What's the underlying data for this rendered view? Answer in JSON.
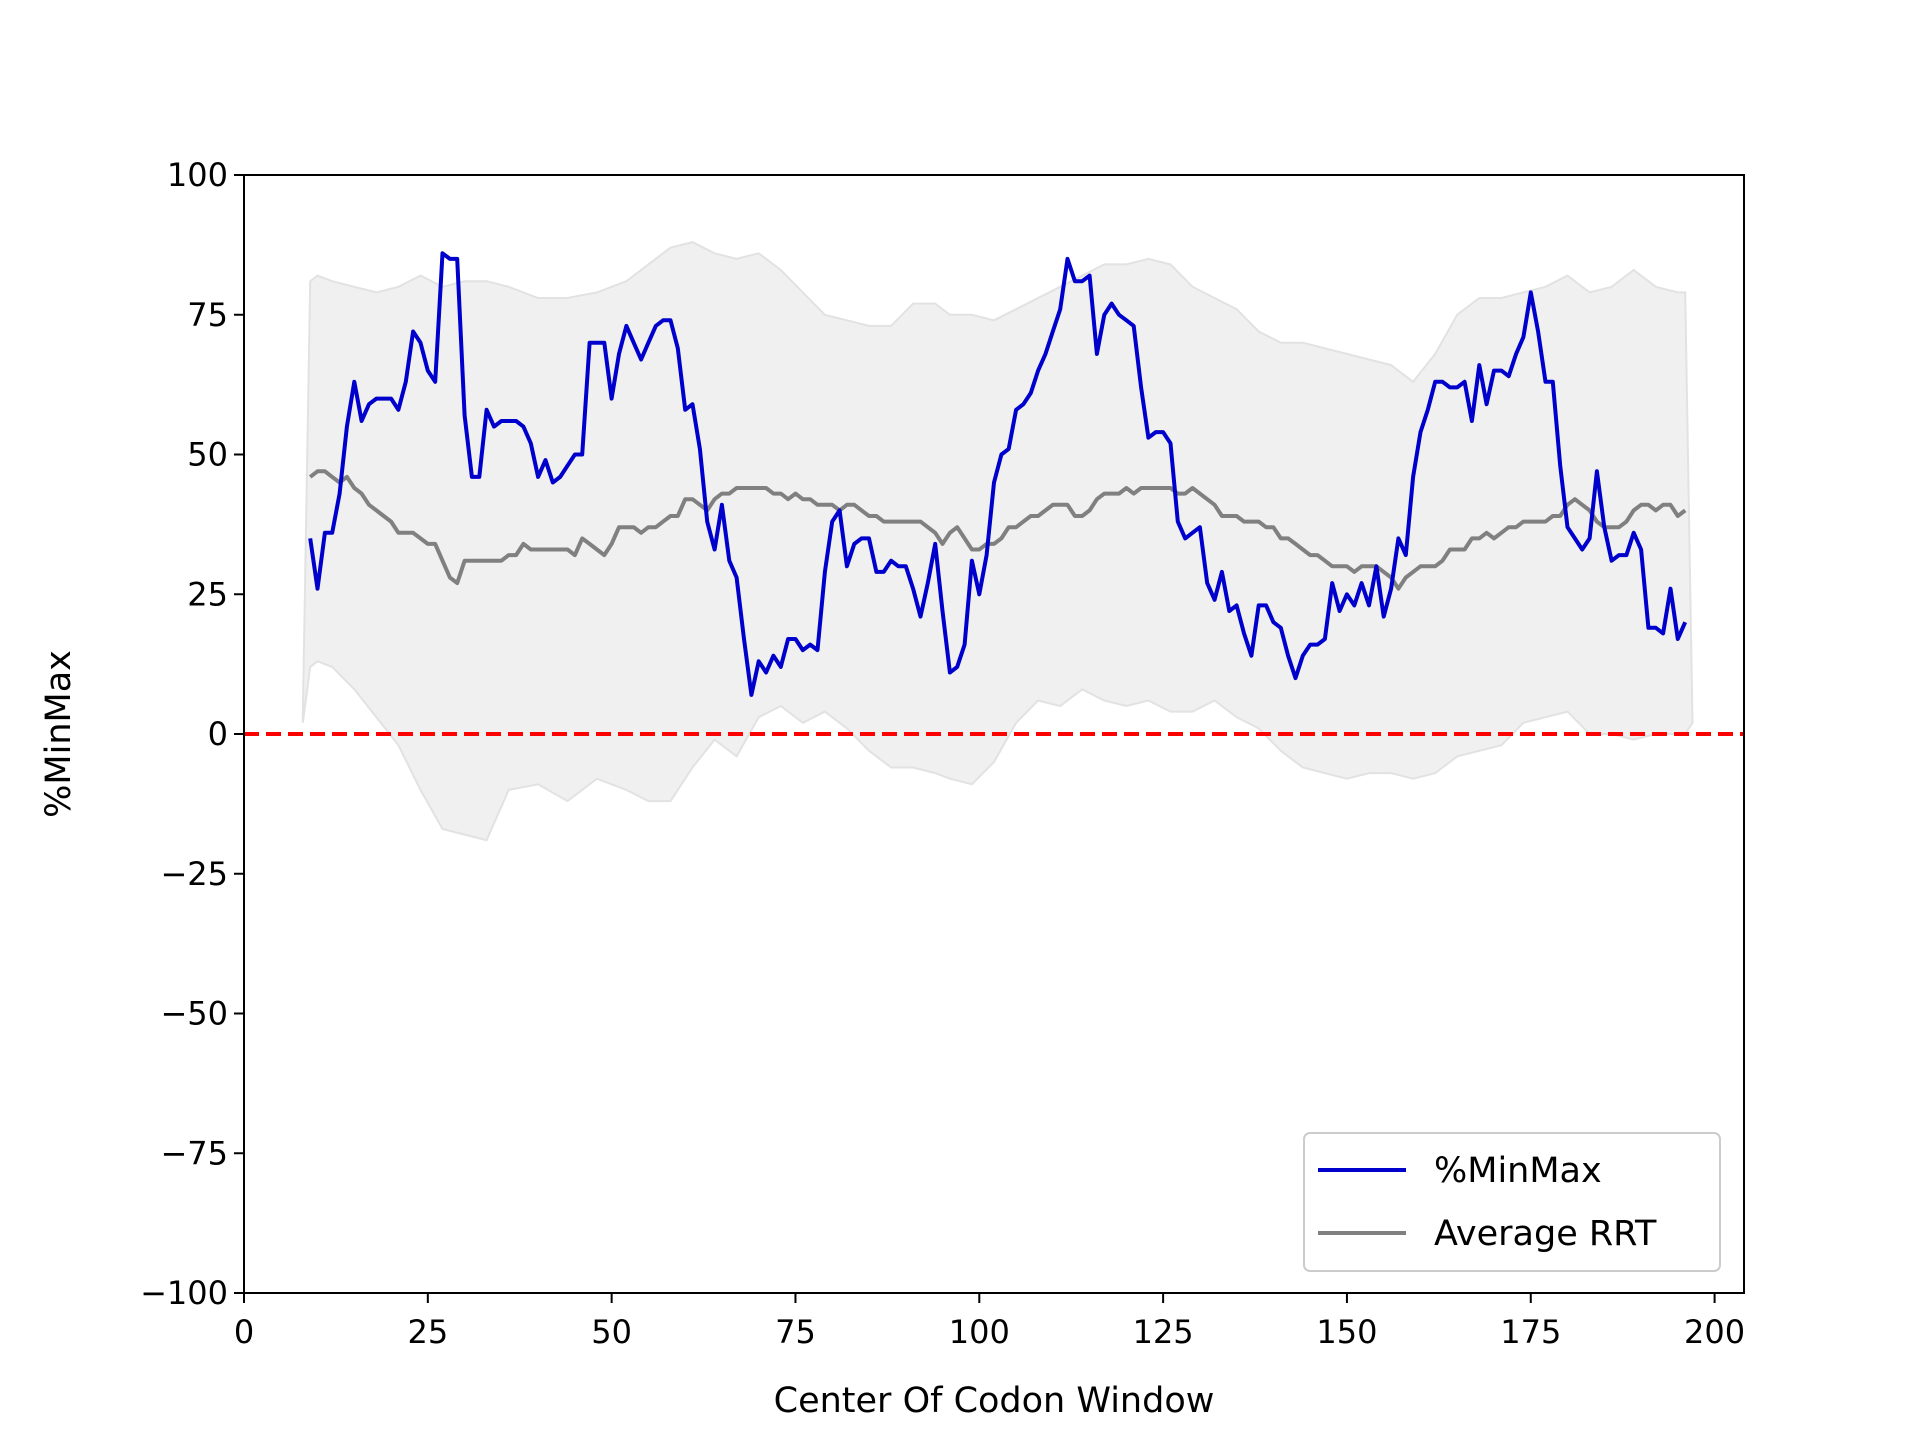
{
  "chart_data": {
    "type": "line",
    "title": "",
    "xlabel": "Center Of Codon Window",
    "ylabel": "%MinMax",
    "xlim": [
      0,
      204
    ],
    "ylim": [
      -100,
      100
    ],
    "x_ticks": [
      0,
      25,
      50,
      75,
      100,
      125,
      150,
      175,
      200
    ],
    "y_ticks": [
      100,
      75,
      50,
      25,
      0,
      -25,
      -50,
      -75,
      -100
    ],
    "x_tick_labels": [
      "0",
      "25",
      "50",
      "75",
      "100",
      "125",
      "150",
      "175",
      "200"
    ],
    "y_tick_labels": [
      "100",
      "75",
      "50",
      "25",
      "0",
      "−25",
      "−50",
      "−75",
      "−100"
    ],
    "grid": false,
    "legend_position": "lower right",
    "reference_line": {
      "y": 0,
      "style": "dashed",
      "color": "#ff0000"
    },
    "band": {
      "color": "#f0f0f0",
      "x": [
        8,
        9,
        10,
        12,
        15,
        18,
        21,
        24,
        27,
        30,
        33,
        36,
        40,
        44,
        48,
        52,
        55,
        58,
        61,
        64,
        67,
        70,
        73,
        76,
        79,
        82,
        85,
        88,
        91,
        94,
        96,
        99,
        102,
        105,
        108,
        111,
        114,
        117,
        120,
        123,
        126,
        129,
        132,
        135,
        138,
        141,
        144,
        147,
        150,
        153,
        156,
        159,
        162,
        165,
        168,
        171,
        174,
        177,
        180,
        183,
        186,
        189,
        192,
        195,
        196,
        197
      ],
      "upper": [
        3,
        81,
        82,
        81,
        80,
        79,
        80,
        82,
        80,
        81,
        81,
        80,
        78,
        78,
        79,
        81,
        84,
        87,
        88,
        86,
        85,
        86,
        83,
        79,
        75,
        74,
        73,
        73,
        77,
        77,
        75,
        75,
        74,
        76,
        78,
        80,
        82,
        84,
        84,
        85,
        84,
        80,
        78,
        76,
        72,
        70,
        70,
        69,
        68,
        67,
        66,
        63,
        68,
        75,
        78,
        78,
        79,
        80,
        82,
        79,
        80,
        83,
        80,
        79,
        79,
        2
      ],
      "lower": [
        2,
        12,
        13,
        12,
        8,
        3,
        -2,
        -10,
        -17,
        -18,
        -19,
        -10,
        -9,
        -12,
        -8,
        -10,
        -12,
        -12,
        -6,
        -1,
        -4,
        3,
        5,
        2,
        4,
        1,
        -3,
        -6,
        -6,
        -7,
        -8,
        -9,
        -5,
        2,
        6,
        5,
        8,
        6,
        5,
        6,
        4,
        4,
        6,
        3,
        1,
        -3,
        -6,
        -7,
        -8,
        -7,
        -7,
        -8,
        -7,
        -4,
        -3,
        -2,
        2,
        3,
        4,
        0,
        0,
        -1,
        0,
        0,
        0,
        2
      ]
    },
    "x": [
      9,
      10,
      11,
      12,
      13,
      14,
      15,
      16,
      17,
      18,
      19,
      20,
      21,
      22,
      23,
      24,
      25,
      26,
      27,
      28,
      29,
      30,
      31,
      32,
      33,
      34,
      35,
      36,
      37,
      38,
      39,
      40,
      41,
      42,
      43,
      44,
      45,
      46,
      47,
      48,
      49,
      50,
      51,
      52,
      53,
      54,
      55,
      56,
      57,
      58,
      59,
      60,
      61,
      62,
      63,
      64,
      65,
      66,
      67,
      68,
      69,
      70,
      71,
      72,
      73,
      74,
      75,
      76,
      77,
      78,
      79,
      80,
      81,
      82,
      83,
      84,
      85,
      86,
      87,
      88,
      89,
      90,
      91,
      92,
      93,
      94,
      95,
      96,
      97,
      98,
      99,
      100,
      101,
      102,
      103,
      104,
      105,
      106,
      107,
      108,
      109,
      110,
      111,
      112,
      113,
      114,
      115,
      116,
      117,
      118,
      119,
      120,
      121,
      122,
      123,
      124,
      125,
      126,
      127,
      128,
      129,
      130,
      131,
      132,
      133,
      134,
      135,
      136,
      137,
      138,
      139,
      140,
      141,
      142,
      143,
      144,
      145,
      146,
      147,
      148,
      149,
      150,
      151,
      152,
      153,
      154,
      155,
      156,
      157,
      158,
      159,
      160,
      161,
      162,
      163,
      164,
      165,
      166,
      167,
      168,
      169,
      170,
      171,
      172,
      173,
      174,
      175,
      176,
      177,
      178,
      179,
      180,
      181,
      182,
      183,
      184,
      185,
      186,
      187,
      188,
      189,
      190,
      191,
      192,
      193,
      194,
      195,
      196
    ],
    "series": [
      {
        "name": "%MinMax",
        "color": "#0000cc",
        "values": [
          35,
          26,
          36,
          36,
          43,
          55,
          63,
          56,
          59,
          60,
          60,
          60,
          58,
          63,
          72,
          70,
          65,
          63,
          86,
          85,
          85,
          57,
          46,
          46,
          58,
          55,
          56,
          56,
          56,
          55,
          52,
          46,
          49,
          45,
          46,
          48,
          50,
          50,
          70,
          70,
          70,
          60,
          68,
          73,
          70,
          67,
          70,
          73,
          74,
          74,
          69,
          58,
          59,
          51,
          38,
          33,
          41,
          31,
          28,
          17,
          7,
          13,
          11,
          14,
          12,
          17,
          17,
          15,
          16,
          15,
          29,
          38,
          40,
          30,
          34,
          35,
          35,
          29,
          29,
          31,
          30,
          30,
          26,
          21,
          27,
          34,
          22,
          11,
          12,
          16,
          31,
          25,
          32,
          45,
          50,
          51,
          58,
          59,
          61,
          65,
          68,
          72,
          76,
          85,
          81,
          81,
          82,
          68,
          75,
          77,
          75,
          74,
          73,
          62,
          53,
          54,
          54,
          52,
          38,
          35,
          36,
          37,
          27,
          24,
          29,
          22,
          23,
          18,
          14,
          23,
          23,
          20,
          19,
          14,
          10,
          14,
          16,
          16,
          17,
          27,
          22,
          25,
          23,
          27,
          23,
          30,
          21,
          26,
          35,
          32,
          46,
          54,
          58,
          63,
          63,
          62,
          62,
          63,
          56,
          66,
          59,
          65,
          65,
          64,
          68,
          71,
          79,
          72,
          63,
          63,
          48,
          37,
          35,
          33,
          35,
          47,
          37,
          31,
          32,
          32,
          36,
          33,
          19,
          19,
          18,
          26,
          17,
          20
        ]
      },
      {
        "name": "Average RRT",
        "color": "#808080",
        "values": [
          46,
          47,
          47,
          46,
          45,
          46,
          44,
          43,
          41,
          40,
          39,
          38,
          36,
          36,
          36,
          35,
          34,
          34,
          31,
          28,
          27,
          31,
          31,
          31,
          31,
          31,
          31,
          32,
          32,
          34,
          33,
          33,
          33,
          33,
          33,
          33,
          32,
          35,
          34,
          33,
          32,
          34,
          37,
          37,
          37,
          36,
          37,
          37,
          38,
          39,
          39,
          42,
          42,
          41,
          40,
          42,
          43,
          43,
          44,
          44,
          44,
          44,
          44,
          43,
          43,
          42,
          43,
          42,
          42,
          41,
          41,
          41,
          40,
          41,
          41,
          40,
          39,
          39,
          38,
          38,
          38,
          38,
          38,
          38,
          37,
          36,
          34,
          36,
          37,
          35,
          33,
          33,
          34,
          34,
          35,
          37,
          37,
          38,
          39,
          39,
          40,
          41,
          41,
          41,
          39,
          39,
          40,
          42,
          43,
          43,
          43,
          44,
          43,
          44,
          44,
          44,
          44,
          44,
          43,
          43,
          44,
          43,
          42,
          41,
          39,
          39,
          39,
          38,
          38,
          38,
          37,
          37,
          35,
          35,
          34,
          33,
          32,
          32,
          31,
          30,
          30,
          30,
          29,
          30,
          30,
          30,
          29,
          28,
          26,
          28,
          29,
          30,
          30,
          30,
          31,
          33,
          33,
          33,
          35,
          35,
          36,
          35,
          36,
          37,
          37,
          38,
          38,
          38,
          38,
          39,
          39,
          41,
          42,
          41,
          40,
          38,
          37,
          37,
          37,
          38,
          40,
          41,
          41,
          40,
          41,
          41,
          39,
          40
        ]
      }
    ]
  }
}
